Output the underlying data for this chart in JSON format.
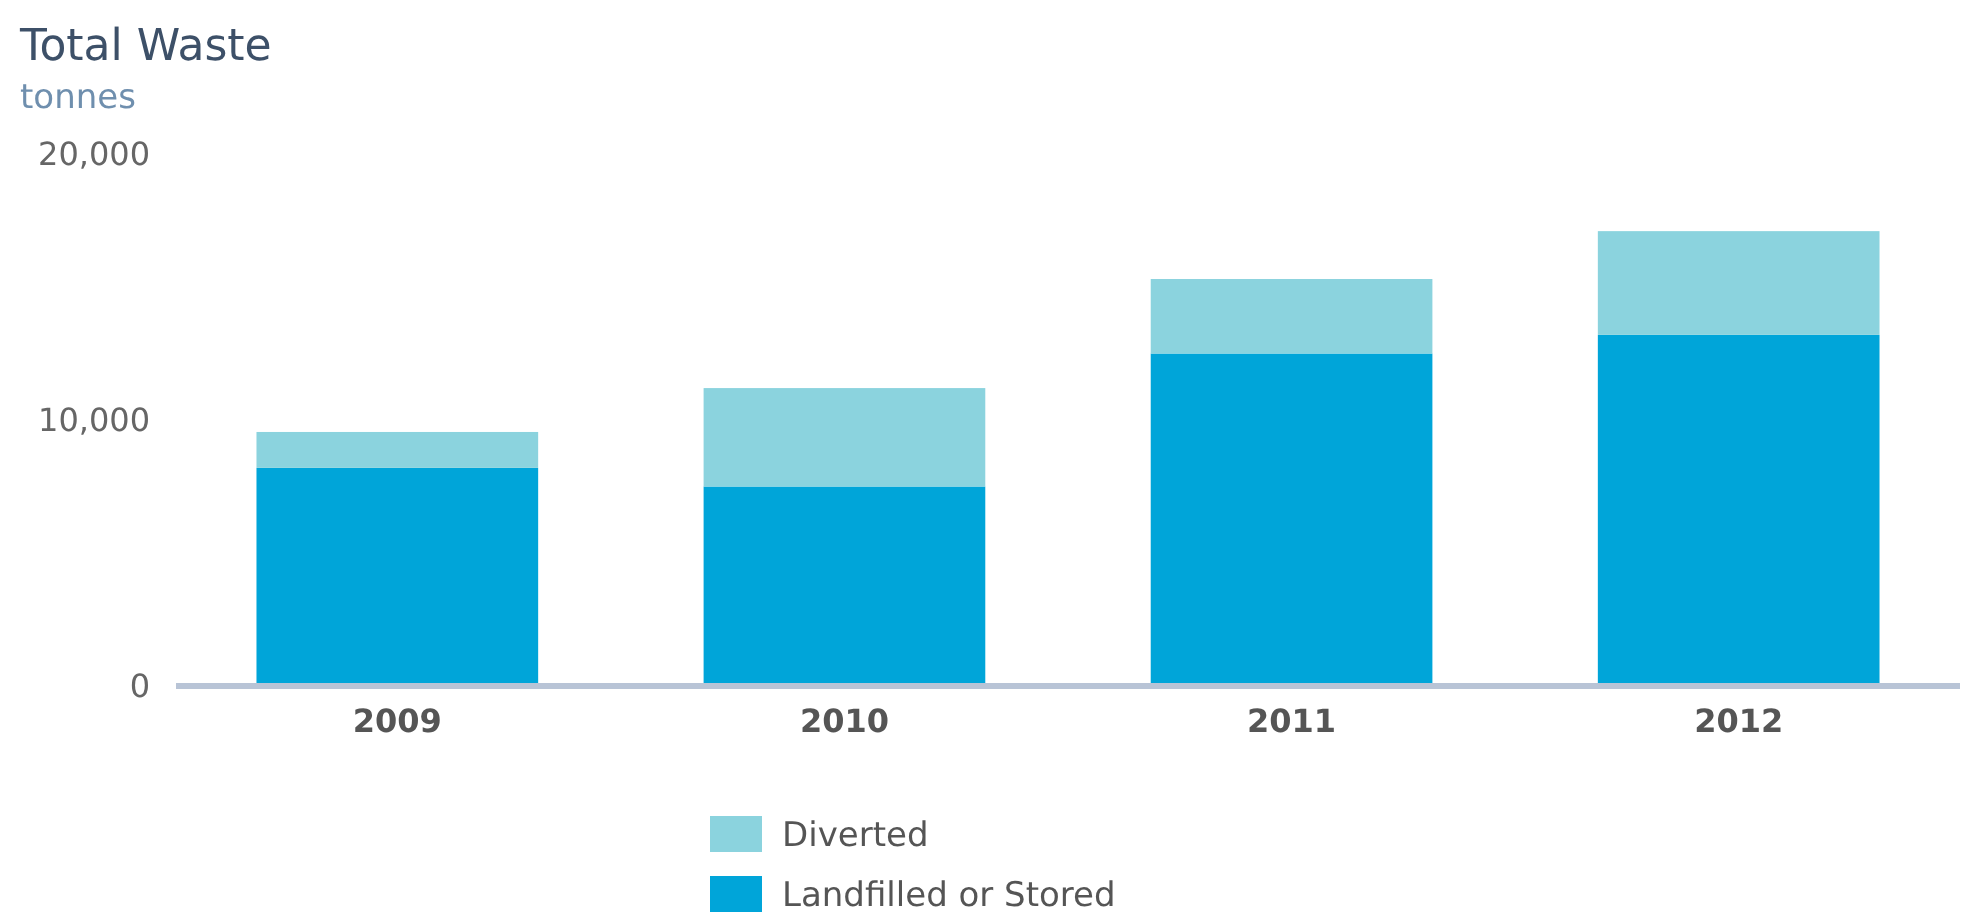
{
  "chart_data": {
    "type": "bar",
    "title": "Total Waste",
    "subtitle": "tonnes",
    "categories": [
      "2009",
      "2010",
      "2011",
      "2012"
    ],
    "stacked": true,
    "ylim": [
      0,
      20000
    ],
    "yticks": [
      {
        "value": 0,
        "label": "0"
      },
      {
        "value": 10000,
        "label": "10,000"
      },
      {
        "value": 20000,
        "label": "20,000"
      }
    ],
    "grid": false,
    "legend": "bottom",
    "series": [
      {
        "name": "Landfilled or Stored",
        "color": "#00a5d9",
        "values": [
          8200,
          7500,
          12500,
          13200
        ]
      },
      {
        "name": "Diverted",
        "color": "#8bd3de",
        "values": [
          1350,
          3700,
          2800,
          3900
        ]
      }
    ]
  }
}
